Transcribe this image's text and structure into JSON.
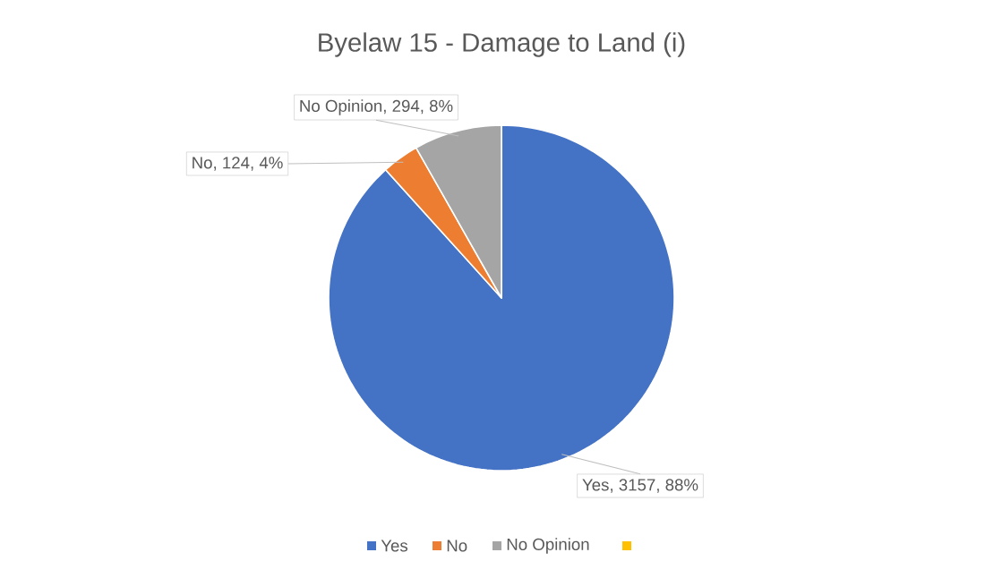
{
  "chart_data": {
    "type": "pie",
    "title": "Byelaw 15 - Damage to Land (i)",
    "categories": [
      "Yes",
      "No",
      "No Opinion",
      null
    ],
    "values": [
      3157,
      124,
      294,
      0
    ],
    "colors": [
      "#4472c4",
      "#ed7d31",
      "#a5a5a5",
      "#ffc000"
    ],
    "value_labels": [
      "Yes, 3157, 88%",
      "No, 124, 4%",
      "No Opinion, 294, 8%",
      null
    ],
    "legend": "bottom"
  }
}
